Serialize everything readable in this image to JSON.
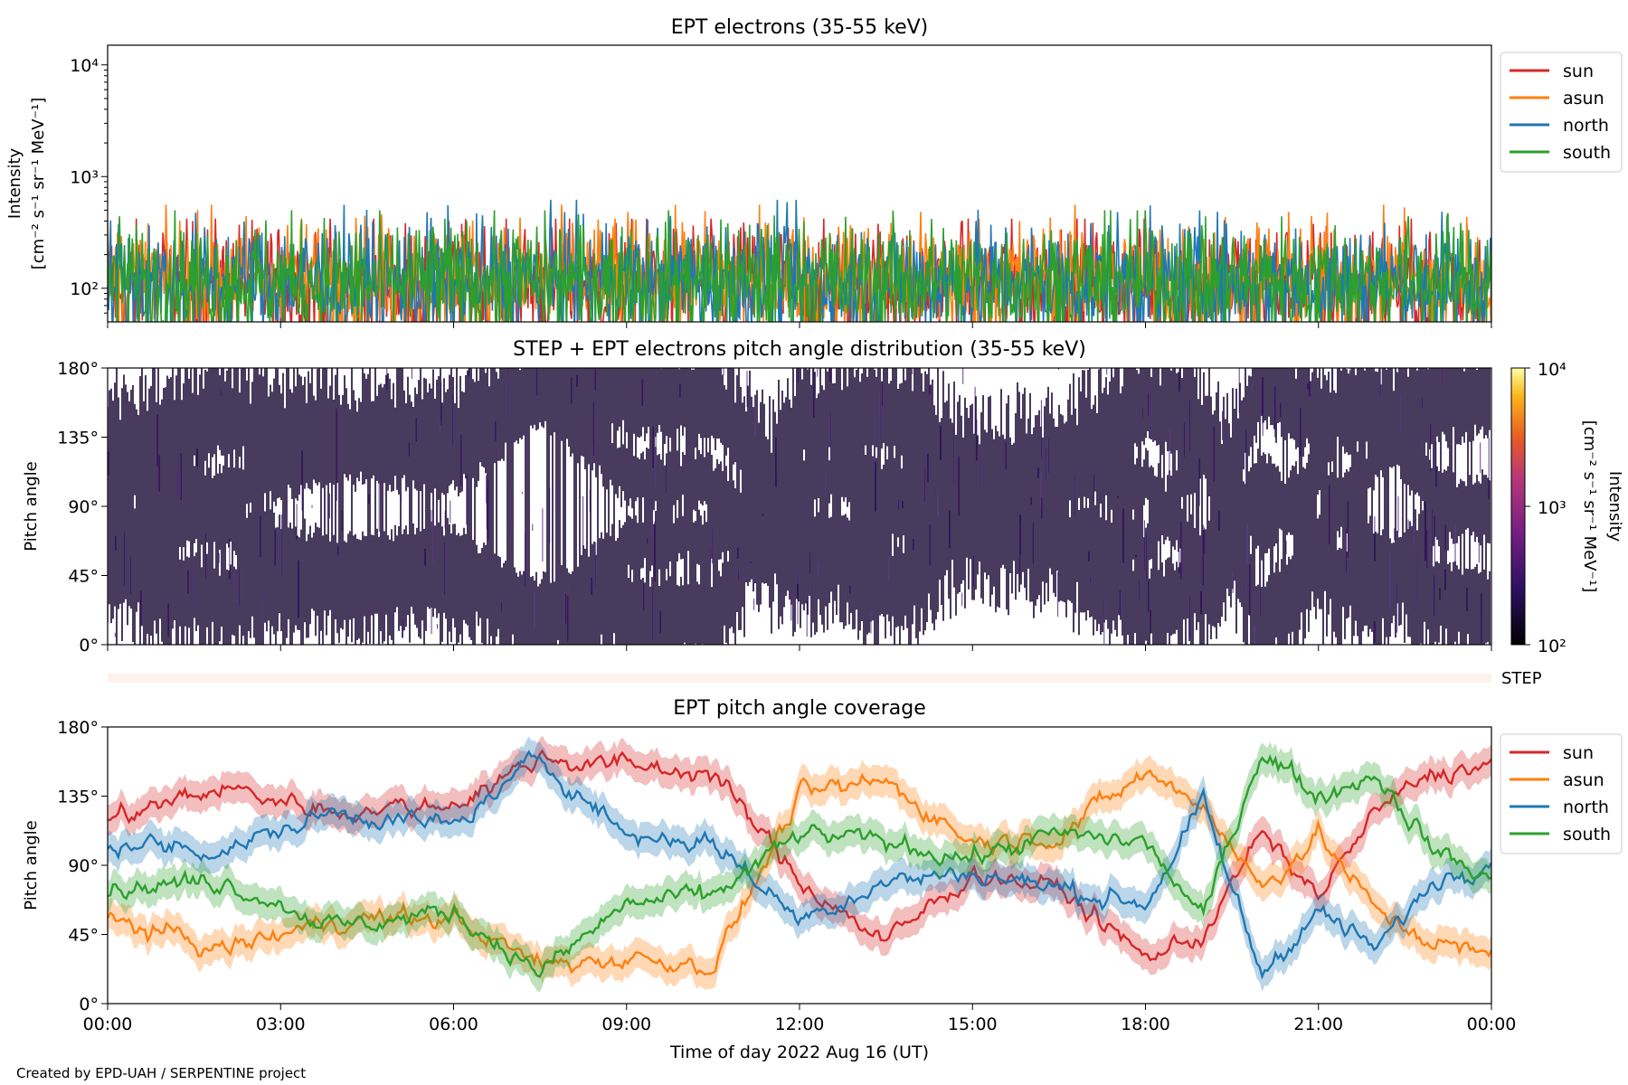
{
  "footer": "Created by EPD-UAH / SERPENTINE project",
  "chart_data": [
    {
      "type": "line",
      "title": "EPT electrons (35-55 keV)",
      "ylabel_line1": "Intensity",
      "ylabel_line2": "[cm⁻² s⁻¹ sr⁻¹ MeV⁻¹]",
      "yscale": "log",
      "ylim": [
        50,
        15000
      ],
      "yticks": [
        "10²",
        "10³",
        "10⁴"
      ],
      "x_hours": [
        0,
        24
      ],
      "legend_position": "outside-right",
      "series": [
        {
          "name": "sun",
          "color": "#d62728",
          "median": 110,
          "peak": 420
        },
        {
          "name": "asun",
          "color": "#ff7f0e",
          "median": 120,
          "peak": 560
        },
        {
          "name": "north",
          "color": "#1f77b4",
          "median": 115,
          "peak": 620
        },
        {
          "name": "south",
          "color": "#2ca02c",
          "median": 115,
          "peak": 500
        }
      ]
    },
    {
      "type": "heatmap",
      "title": "STEP + EPT electrons pitch angle distribution (35-55 keV)",
      "ylabel": "Pitch angle",
      "yticks": [
        "0°",
        "45°",
        "90°",
        "135°",
        "180°"
      ],
      "ylim": [
        0,
        180
      ],
      "colorbar_label_line1": "Intensity",
      "colorbar_label_line2": "[cm⁻² s⁻¹ sr⁻¹ MeV⁻¹]",
      "colorbar_ticks": [
        "10²",
        "10³",
        "10⁴"
      ],
      "colorbar_range": [
        100,
        10000
      ],
      "step_strip_label": "STEP"
    },
    {
      "type": "line",
      "title": "EPT pitch angle coverage",
      "ylabel": "Pitch angle",
      "ylim": [
        0,
        180
      ],
      "yticks": [
        "0°",
        "45°",
        "90°",
        "135°",
        "180°"
      ],
      "xlabel": "Time of day 2022 Aug 16 (UT)",
      "xticks": [
        "00:00",
        "03:00",
        "06:00",
        "09:00",
        "12:00",
        "15:00",
        "18:00",
        "21:00",
        "00:00"
      ],
      "legend_position": "outside-right",
      "series": [
        {
          "name": "sun",
          "color": "#d62728",
          "hours": [
            0,
            2,
            4,
            6,
            7.5,
            9,
            10.5,
            12,
            13.5,
            15,
            16.5,
            18,
            19,
            20,
            21,
            22,
            23,
            24
          ],
          "pitch": [
            120,
            140,
            125,
            130,
            160,
            155,
            150,
            80,
            40,
            85,
            75,
            30,
            45,
            110,
            70,
            125,
            150,
            155
          ]
        },
        {
          "name": "asun",
          "color": "#ff7f0e",
          "hours": [
            0,
            2,
            4,
            6,
            7.5,
            9,
            10.5,
            12,
            13.5,
            15,
            16.5,
            18,
            19,
            20,
            21,
            22,
            23,
            24
          ],
          "pitch": [
            55,
            35,
            55,
            55,
            25,
            30,
            25,
            135,
            145,
            105,
            110,
            150,
            130,
            75,
            110,
            60,
            40,
            30
          ]
        },
        {
          "name": "north",
          "color": "#1f77b4",
          "hours": [
            0,
            2,
            4,
            6,
            7.5,
            9,
            10.5,
            12,
            13.5,
            15,
            16.5,
            18,
            19,
            20,
            21,
            22,
            23,
            24
          ],
          "pitch": [
            105,
            100,
            125,
            115,
            160,
            110,
            105,
            55,
            80,
            85,
            75,
            65,
            130,
            20,
            60,
            35,
            80,
            95
          ]
        },
        {
          "name": "south",
          "color": "#2ca02c",
          "hours": [
            0,
            2,
            4,
            6,
            7.5,
            9,
            10.5,
            12,
            13.5,
            15,
            16.5,
            18,
            19,
            20,
            21,
            22,
            23,
            24
          ],
          "pitch": [
            75,
            80,
            50,
            60,
            20,
            65,
            70,
            110,
            105,
            95,
            110,
            105,
            55,
            165,
            135,
            150,
            100,
            80
          ]
        }
      ]
    }
  ]
}
